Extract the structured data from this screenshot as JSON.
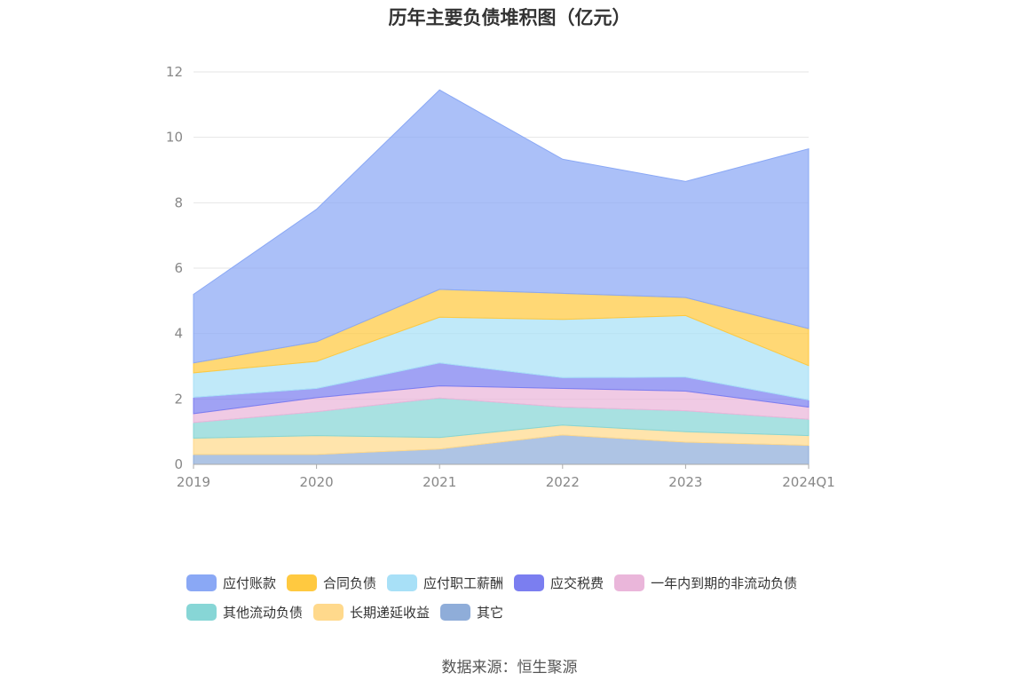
{
  "chart_data": {
    "type": "area",
    "stacked": true,
    "title": "历年主要负债堆积图（亿元）",
    "x": [
      "2019",
      "2020",
      "2021",
      "2022",
      "2023",
      "2024Q1"
    ],
    "ylim": [
      0,
      12
    ],
    "yticks": [
      "0",
      "2",
      "4",
      "6",
      "8",
      "10",
      "12"
    ],
    "grid": true,
    "legend_position": "bottom",
    "series": [
      {
        "name": "其它",
        "color": "#8fadd9",
        "values": [
          0.3,
          0.3,
          0.47,
          0.9,
          0.68,
          0.58
        ]
      },
      {
        "name": "长期递延收益",
        "color": "#ffd98c",
        "values": [
          0.5,
          0.58,
          0.35,
          0.3,
          0.32,
          0.3
        ]
      },
      {
        "name": "其他流动负债",
        "color": "#87d6d6",
        "values": [
          0.48,
          0.73,
          1.21,
          0.55,
          0.64,
          0.5
        ]
      },
      {
        "name": "一年内到期的非流动负债",
        "color": "#eab6da",
        "values": [
          0.27,
          0.43,
          0.37,
          0.57,
          0.6,
          0.37
        ]
      },
      {
        "name": "应交税费",
        "color": "#7b7ef0",
        "values": [
          0.5,
          0.28,
          0.7,
          0.33,
          0.43,
          0.22
        ]
      },
      {
        "name": "应付职工薪酬",
        "color": "#a8e0f7",
        "values": [
          0.75,
          0.83,
          1.4,
          1.78,
          1.88,
          1.05
        ]
      },
      {
        "name": "合同负债",
        "color": "#ffc940",
        "values": [
          0.3,
          0.6,
          0.85,
          0.8,
          0.55,
          1.13
        ]
      },
      {
        "name": "应付账款",
        "color": "#8aa8f5",
        "values": [
          2.1,
          4.05,
          6.1,
          4.1,
          3.55,
          5.5
        ]
      }
    ]
  },
  "legend": {
    "row1": [
      "应付账款",
      "合同负债",
      "应付职工薪酬",
      "应交税费",
      "一年内到期的非流动负债"
    ],
    "row2": [
      "其他流动负债",
      "长期递延收益",
      "其它"
    ]
  },
  "source": "数据来源：恒生聚源"
}
